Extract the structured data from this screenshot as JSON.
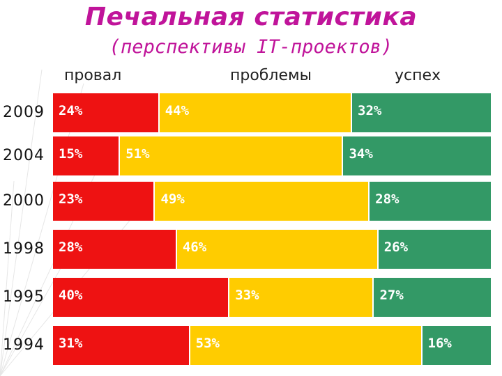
{
  "title": "Печальная статистика",
  "subtitle": "(перспективы IT-проектов)",
  "colors": {
    "fail": "#ee1212",
    "problem": "#ffcc00",
    "success": "#339966",
    "title": "#c0149a"
  },
  "chart_data": {
    "type": "bar",
    "orientation": "horizontal",
    "stacked": true,
    "normalized": true,
    "categories": [
      "2009",
      "2004",
      "2000",
      "1998",
      "1995",
      "1994"
    ],
    "series": [
      {
        "name": "провал",
        "values": [
          24,
          15,
          23,
          28,
          40,
          31
        ],
        "labels": [
          "24%",
          "15%",
          "23%",
          "28%",
          "40%",
          "31%"
        ]
      },
      {
        "name": "проблемы",
        "values": [
          44,
          51,
          49,
          46,
          33,
          53
        ],
        "labels": [
          "44%",
          "51%",
          "49%",
          "46%",
          "33%",
          "53%"
        ]
      },
      {
        "name": "успех",
        "values": [
          32,
          34,
          28,
          26,
          27,
          16
        ],
        "labels": [
          "32%",
          "34%",
          "28%",
          "26%",
          "27%",
          "16%"
        ]
      }
    ],
    "legend_position": "top",
    "grid": false
  }
}
